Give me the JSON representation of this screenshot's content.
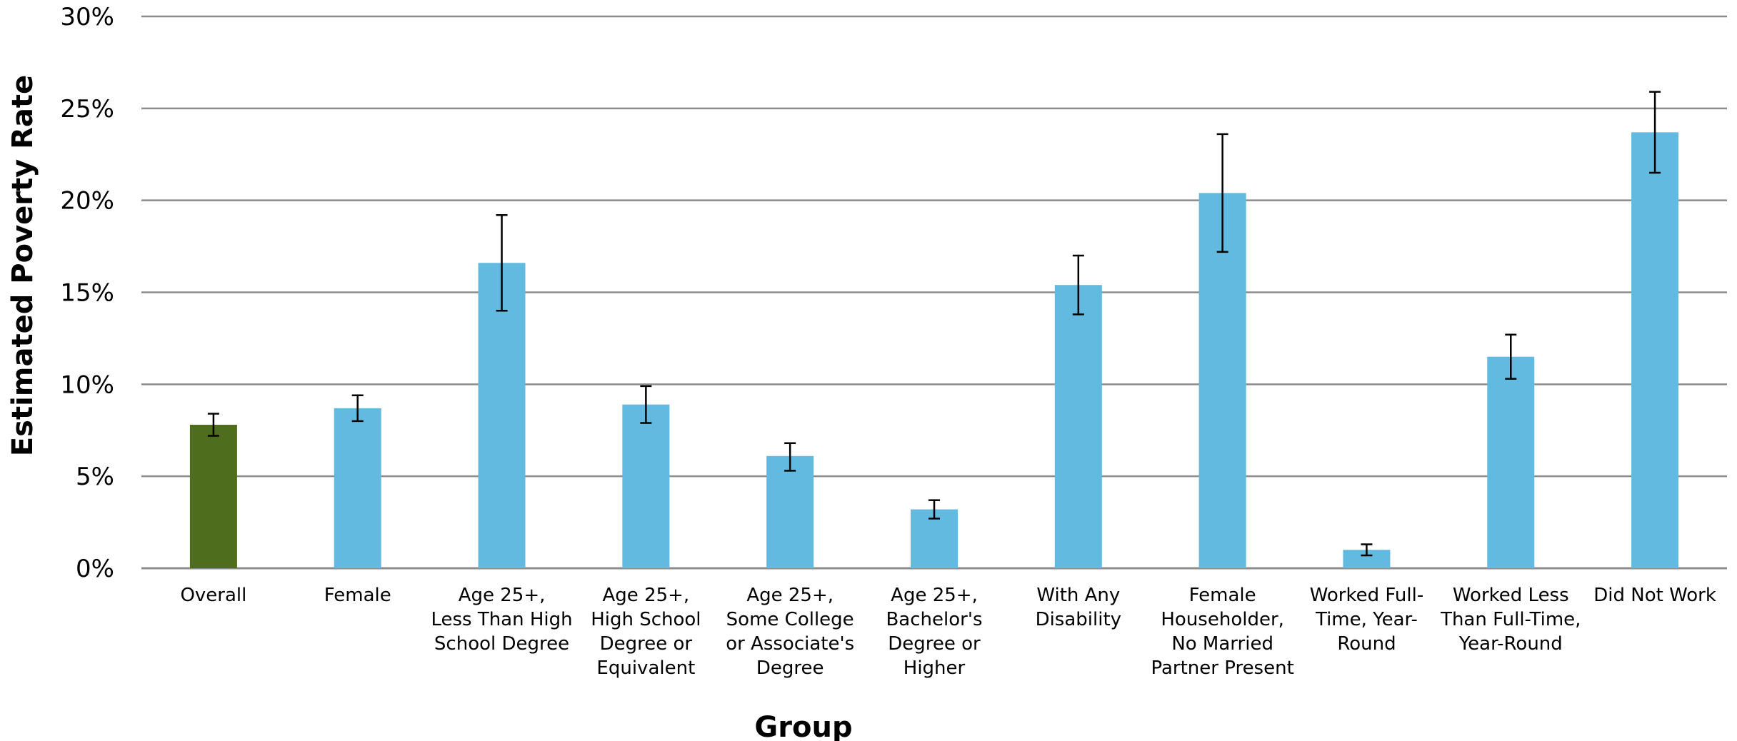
{
  "chart_data": {
    "type": "bar",
    "title": "",
    "xlabel": "Group",
    "ylabel": "Estimated Poverty Rate",
    "ylim": [
      0,
      30
    ],
    "y_unit": "%",
    "yticks": [
      {
        "value": 0,
        "label": "0%"
      },
      {
        "value": 5,
        "label": "5%"
      },
      {
        "value": 10,
        "label": "10%"
      },
      {
        "value": 15,
        "label": "15%"
      },
      {
        "value": 20,
        "label": "20%"
      },
      {
        "value": 25,
        "label": "25%"
      },
      {
        "value": 30,
        "label": "30%"
      }
    ],
    "grid": true,
    "categories": [
      [
        "Overall"
      ],
      [
        "Female"
      ],
      [
        "Age 25+,",
        "Less Than High",
        "School Degree"
      ],
      [
        "Age 25+,",
        "High School",
        "Degree or",
        "Equivalent"
      ],
      [
        "Age 25+,",
        "Some College",
        "or Associate's",
        "Degree"
      ],
      [
        "Age 25+,",
        "Bachelor's",
        "Degree or",
        "Higher"
      ],
      [
        "With Any",
        "Disability"
      ],
      [
        "Female",
        "Householder,",
        "No Married",
        "Partner Present"
      ],
      [
        "Worked Full-",
        "Time, Year-",
        "Round"
      ],
      [
        "Worked Less",
        "Than Full-Time,",
        "Year-Round"
      ],
      [
        "Did Not Work"
      ]
    ],
    "values": [
      7.8,
      8.7,
      16.6,
      8.9,
      6.1,
      3.2,
      15.4,
      20.4,
      1.0,
      11.5,
      23.7
    ],
    "error_low": [
      7.2,
      8.0,
      14.0,
      7.9,
      5.3,
      2.7,
      13.8,
      17.2,
      0.7,
      10.3,
      21.5
    ],
    "error_high": [
      8.4,
      9.4,
      19.2,
      9.9,
      6.8,
      3.7,
      17.0,
      23.6,
      1.3,
      12.7,
      25.9
    ],
    "bar_colors": [
      "#4E6E1E",
      "#63BAE0",
      "#63BAE0",
      "#63BAE0",
      "#63BAE0",
      "#63BAE0",
      "#63BAE0",
      "#63BAE0",
      "#63BAE0",
      "#63BAE0",
      "#63BAE0"
    ],
    "grid_color": "#8C8C8C",
    "errorbar_color": "#000000"
  }
}
